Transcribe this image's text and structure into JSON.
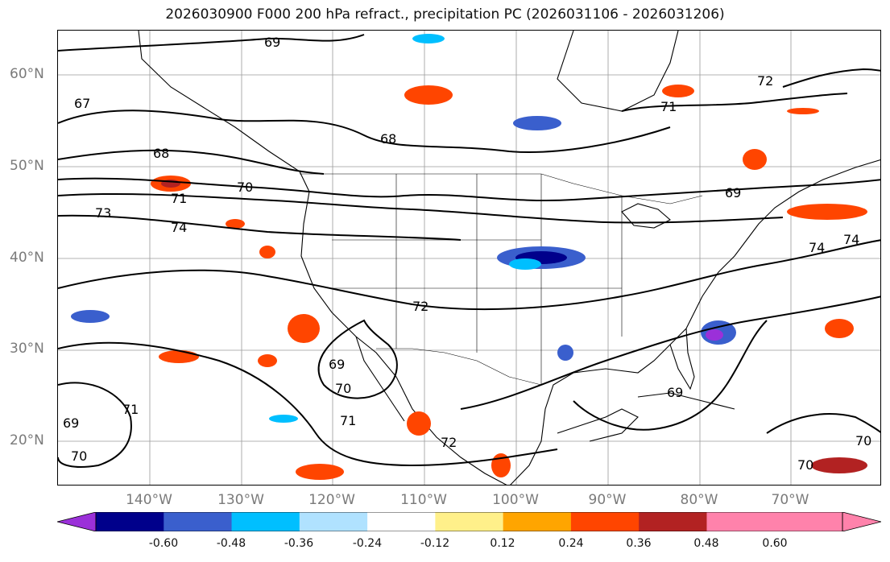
{
  "title": "2026030900 F000 200 hPa refract., precipitation PC (2026031106 - 2026031206)",
  "lat_labels": [
    "60°N",
    "50°N",
    "40°N",
    "30°N",
    "20°N"
  ],
  "lon_labels": [
    "140°W",
    "130°W",
    "120°W",
    "110°W",
    "100°W",
    "90°W",
    "80°W",
    "70°W"
  ],
  "contour_labels": [
    "69",
    "67",
    "68",
    "70",
    "71",
    "73",
    "74",
    "72",
    "69",
    "70",
    "71",
    "72",
    "69",
    "70",
    "71",
    "69",
    "69",
    "68",
    "71",
    "72",
    "74",
    "74",
    "70",
    "70"
  ],
  "colorbar": {
    "tick_labels": [
      "-0.60",
      "-0.48",
      "-0.36",
      "-0.24",
      "-0.12",
      "0.12",
      "0.24",
      "0.36",
      "0.48",
      "0.60"
    ],
    "colors": [
      "#9b30d9",
      "#00008b",
      "#3a5fcd",
      "#00bfff",
      "#b0e2ff",
      "#ffffff",
      "#fff08a",
      "#ffa500",
      "#ff4500",
      "#b22222",
      "#ff82ab",
      "#ff82ab"
    ]
  }
}
